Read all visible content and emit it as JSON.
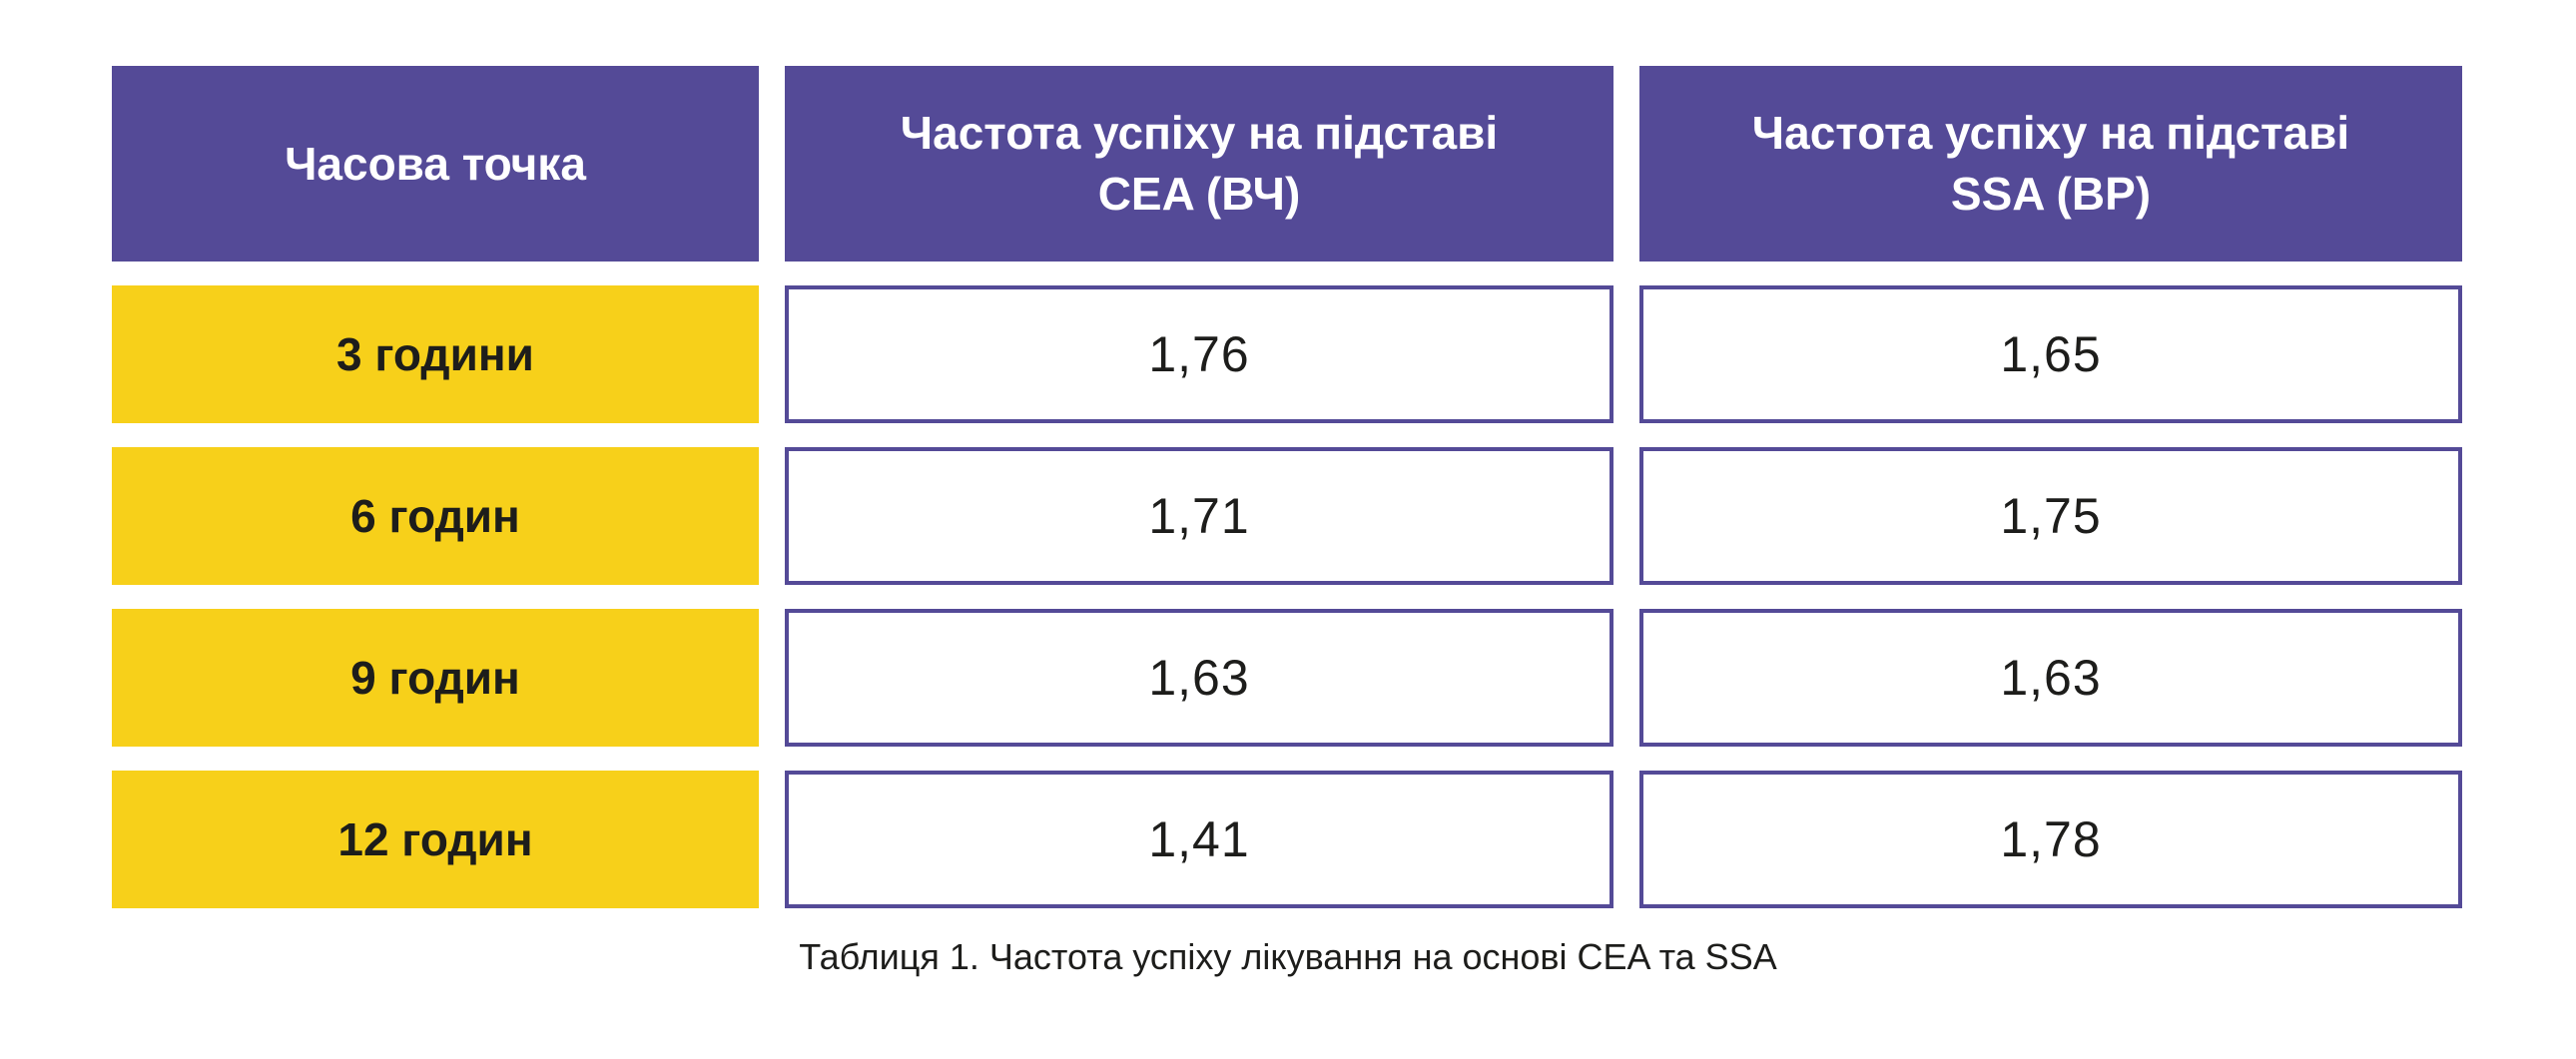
{
  "table": {
    "columns": [
      {
        "label": "Часова точка"
      },
      {
        "label": "Частота успіху на підставі CEA (ВЧ)"
      },
      {
        "label": "Частота успіху на підставі SSA (ВР)"
      }
    ],
    "rows": [
      {
        "time_point": "3 години",
        "cea_vch": "1,76",
        "ssa_vr": "1,65"
      },
      {
        "time_point": "6 годин",
        "cea_vch": "1,71",
        "ssa_vr": "1,75"
      },
      {
        "time_point": "9 годин",
        "cea_vch": "1,63",
        "ssa_vr": "1,63"
      },
      {
        "time_point": "12 годин",
        "cea_vch": "1,41",
        "ssa_vr": "1,78"
      }
    ]
  },
  "caption": "Таблиця 1. Частота успіху лікування на основі CEA та SSA",
  "colors": {
    "header_bg": "#544a97",
    "header_text": "#ffffff",
    "time_cell_bg": "#f7d01a",
    "value_cell_border": "#544a97",
    "dark_text": "#1d1d1b",
    "background": "#ffffff"
  },
  "chart_data": {
    "type": "table",
    "title": "Таблиця 1. Частота успіху лікування на основі CEA та SSA",
    "columns": [
      "Часова точка",
      "Частота успіху на підставі CEA (ВЧ)",
      "Частота успіху на підставі SSA (ВР)"
    ],
    "rows": [
      [
        "3 години",
        1.76,
        1.65
      ],
      [
        "6 годин",
        1.71,
        1.75
      ],
      [
        "9 годин",
        1.63,
        1.63
      ],
      [
        "12 годин",
        1.41,
        1.78
      ]
    ]
  }
}
